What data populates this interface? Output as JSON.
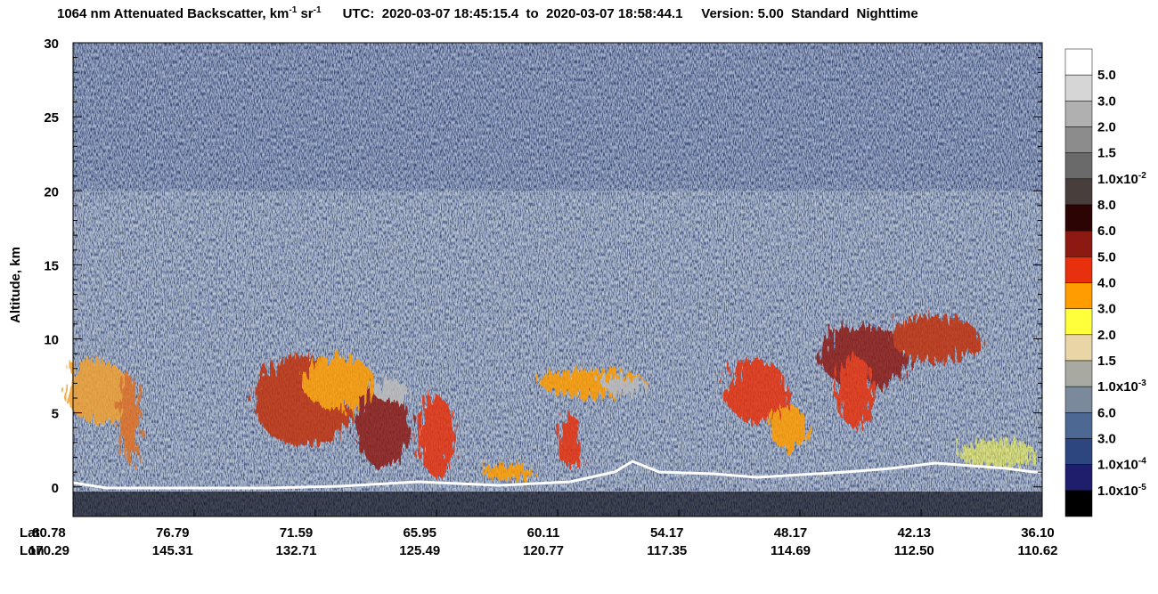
{
  "chart_data": {
    "type": "lidar-curtain",
    "title": [
      "1064 nm Attenuated Backscatter, km",
      "-1",
      " sr",
      "-1"
    ],
    "subtitle": "UTC:  2020-03-07 18:45:15.4  to  2020-03-07 18:58:44.1     Version: 5.00  Standard  Nighttime",
    "y_label": "Altitude, km",
    "ylim": [
      -2,
      30
    ],
    "yticks": [
      0,
      5,
      10,
      15,
      20,
      25,
      30
    ],
    "x_tick_rows": [
      {
        "name": "Lat",
        "labels": [
          "80.78",
          "76.79",
          "71.59",
          "65.95",
          "60.11",
          "54.17",
          "48.17",
          "42.13",
          "36.10"
        ]
      },
      {
        "name": "Lon",
        "labels": [
          "170.29",
          "145.31",
          "132.71",
          "125.49",
          "120.77",
          "117.35",
          "114.69",
          "112.50",
          "110.62"
        ]
      }
    ],
    "colorbar": {
      "colors": [
        "#ffffff",
        "#d6d6d6",
        "#b0b0b0",
        "#8c8c8c",
        "#6a6a6a",
        "#483e3c",
        "#2c0404",
        "#8c1a12",
        "#e6300e",
        "#ff9c00",
        "#ffff3c",
        "#e8d6a6",
        "#a8aaa2",
        "#7a8a9c",
        "#4e6894",
        "#2e4680",
        "#1e1e6c",
        "#000000"
      ],
      "ticks": [
        {
          "label": "5.0"
        },
        {
          "label": "3.0"
        },
        {
          "label": "2.0"
        },
        {
          "label": "1.5"
        },
        {
          "label": "1.0x10",
          "sup": "-2"
        },
        {
          "label": "8.0"
        },
        {
          "label": "6.0"
        },
        {
          "label": "5.0"
        },
        {
          "label": "4.0"
        },
        {
          "label": "3.0"
        },
        {
          "label": "2.0"
        },
        {
          "label": "1.5"
        },
        {
          "label": "1.0x10",
          "sup": "-3"
        },
        {
          "label": "6.0"
        },
        {
          "label": "3.0"
        },
        {
          "label": "1.0x10",
          "sup": "-4"
        },
        {
          "label": "1.0x10",
          "sup": "-5"
        }
      ]
    }
  }
}
